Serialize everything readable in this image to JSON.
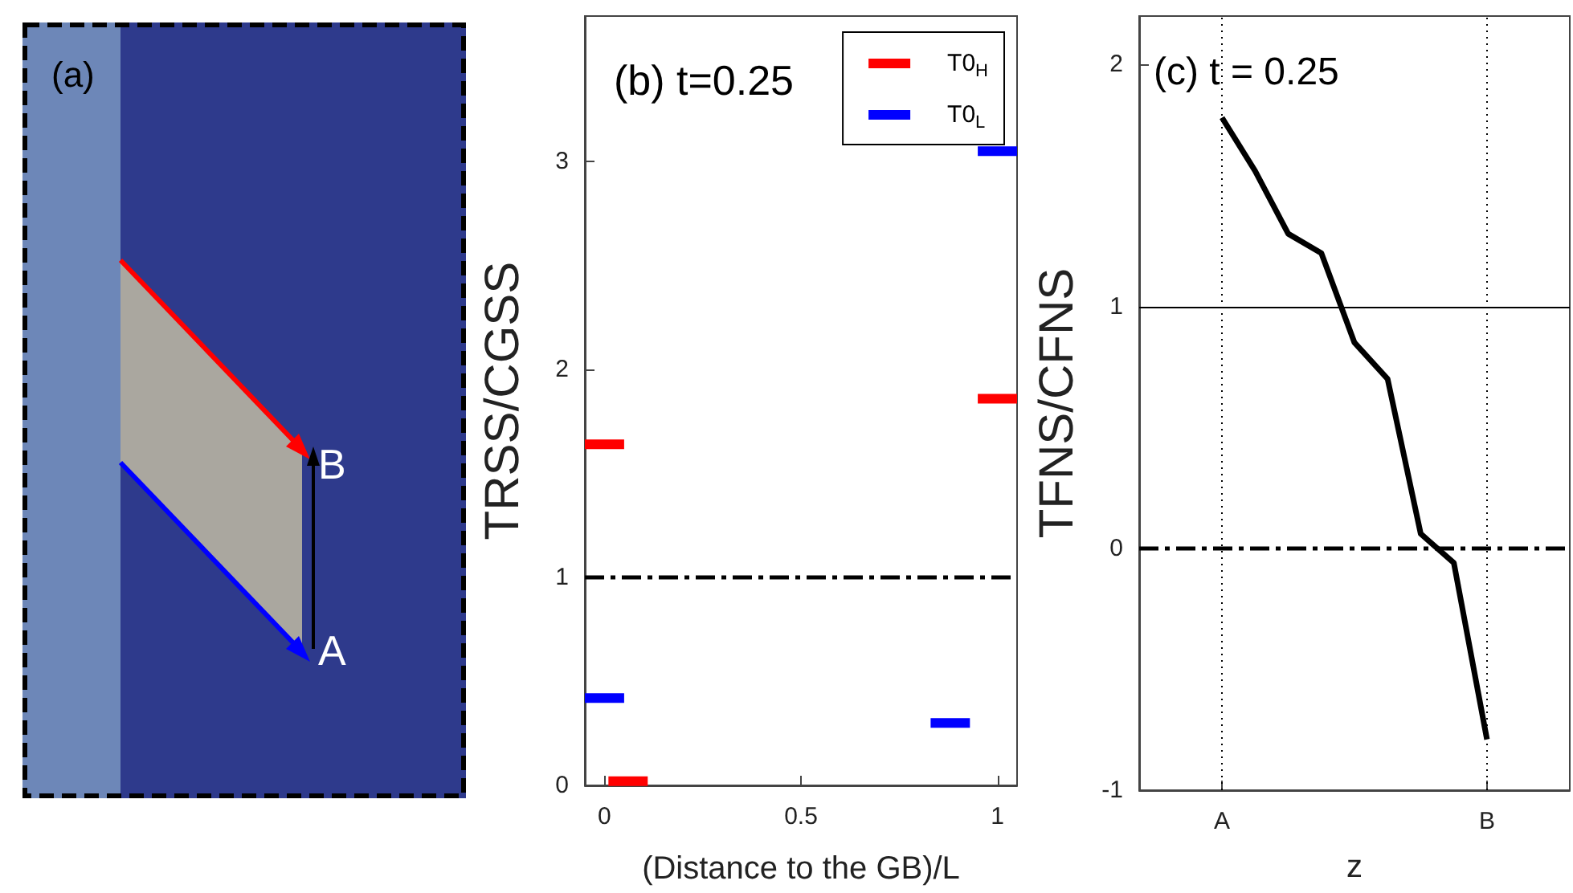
{
  "chart_data": [
    {
      "type": "other",
      "title": "(a)",
      "annotations": [
        "B",
        "A"
      ]
    },
    {
      "type": "line",
      "title": "(b) t=0.25",
      "xlabel": "(Distance to the GB)/L",
      "ylabel": "TRSS/CGSS",
      "series": [
        {
          "name": "T0$_{H}$",
          "color": "#ff0000",
          "x": [
            -0.05,
            0.05,
            null,
            0.01,
            0.11,
            null,
            0.95,
            1.05
          ],
          "values": [
            1.64,
            1.64,
            null,
            0.02,
            0.02,
            null,
            1.86,
            1.86
          ]
        },
        {
          "name": "T0$_{L}$",
          "color": "#0000ff",
          "x": [
            -0.05,
            0.05,
            null,
            0.83,
            0.93,
            null,
            0.95,
            1.05
          ],
          "values": [
            0.42,
            0.42,
            null,
            0.3,
            0.3,
            null,
            3.05,
            3.05
          ]
        }
      ],
      "xlim": [
        -0.05,
        1.05
      ],
      "xticks": [
        0,
        0.5,
        1
      ],
      "ylim": [
        0,
        3.7
      ],
      "yticks": [
        0,
        1,
        2,
        3
      ],
      "ref_lines": [
        {
          "axis": "y",
          "value": 1,
          "color": "#000000",
          "line_style": "dashed"
        }
      ],
      "legend": "top right"
    },
    {
      "type": "line",
      "title": "(c) t = 0.25",
      "xlabel": "z",
      "ylabel": "TFNS/CFNS",
      "series": [
        {
          "color": "#000000",
          "values": [
            null,
            null,
            1.78,
            1.56,
            1.3,
            1.22,
            0.85,
            0.7,
            0.06,
            -0.06,
            -0.79,
            null,
            null
          ]
        }
      ],
      "categories": [
        null,
        null,
        "A",
        null,
        null,
        null,
        null,
        null,
        null,
        null,
        "B",
        null,
        null
      ],
      "ylim": [
        -1,
        2.2
      ],
      "yticks": [
        -1,
        0,
        1,
        2
      ],
      "ref_lines": [
        {
          "axis": "y",
          "value": 1,
          "color": "#000000",
          "line_style": "solid"
        },
        {
          "axis": "y",
          "value": 0,
          "color": "#000000",
          "line_style": "dashed"
        },
        {
          "axis": "x",
          "value": "A",
          "color": "#000000",
          "line_style": "dotted"
        },
        {
          "axis": "x",
          "value": "B",
          "color": "#000000",
          "line_style": "dotted"
        }
      ]
    }
  ]
}
